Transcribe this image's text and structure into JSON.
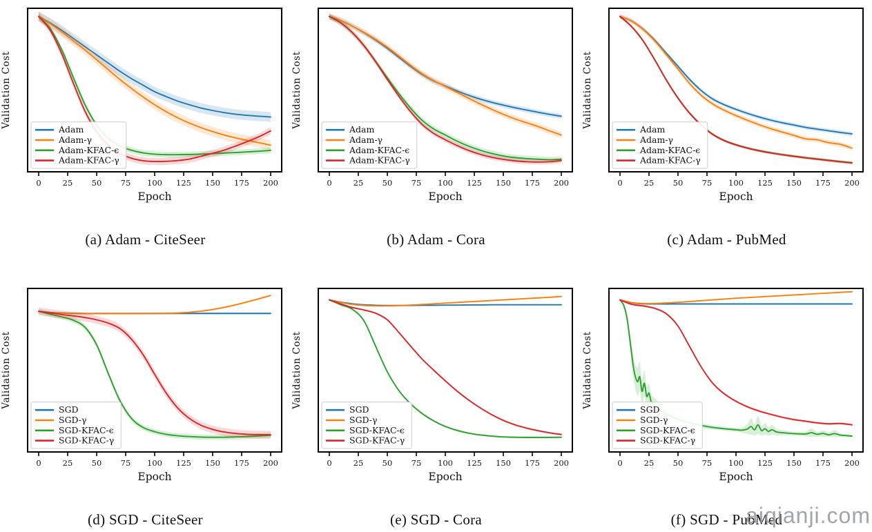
{
  "figure": {
    "background": "#ffffff",
    "watermark": "aiqianji.com"
  },
  "chart_data": [
    {
      "id": "a",
      "type": "line",
      "caption": "(a) Adam - CiteSeer",
      "xlabel": "Epoch",
      "ylabel": "Validation Cost",
      "xlim": [
        0,
        200
      ],
      "ylim": [
        0,
        1
      ],
      "xticks": [
        0,
        25,
        50,
        75,
        100,
        125,
        150,
        175,
        200
      ],
      "yticks": [],
      "grid": false,
      "legend_position": "lower left",
      "x": [
        0,
        10,
        20,
        30,
        40,
        50,
        60,
        70,
        80,
        90,
        100,
        110,
        120,
        130,
        140,
        150,
        160,
        170,
        180,
        190,
        200
      ],
      "series": [
        {
          "name": "Adam",
          "color": "#1f77b4",
          "band": 0.03,
          "values": [
            0.95,
            0.91,
            0.865,
            0.815,
            0.765,
            0.715,
            0.665,
            0.615,
            0.57,
            0.53,
            0.49,
            0.46,
            0.432,
            0.41,
            0.39,
            0.375,
            0.362,
            0.352,
            0.345,
            0.34,
            0.335
          ]
        },
        {
          "name": "Adam-γ",
          "color": "#ff7f0e",
          "band": 0.03,
          "values": [
            0.95,
            0.905,
            0.855,
            0.8,
            0.745,
            0.685,
            0.625,
            0.565,
            0.51,
            0.458,
            0.41,
            0.368,
            0.33,
            0.298,
            0.27,
            0.246,
            0.225,
            0.207,
            0.192,
            0.178,
            0.163
          ]
        },
        {
          "name": "Adam-KFAC-ϵ",
          "color": "#2ca02c",
          "band": 0.018,
          "values": [
            0.95,
            0.875,
            0.745,
            0.575,
            0.41,
            0.285,
            0.205,
            0.158,
            0.132,
            0.116,
            0.108,
            0.105,
            0.105,
            0.106,
            0.108,
            0.111,
            0.115,
            0.118,
            0.122,
            0.126,
            0.131
          ]
        },
        {
          "name": "Adam-KFAC-γ",
          "color": "#d62728",
          "band": 0.022,
          "values": [
            0.95,
            0.865,
            0.72,
            0.54,
            0.37,
            0.245,
            0.163,
            0.112,
            0.083,
            0.068,
            0.063,
            0.064,
            0.069,
            0.078,
            0.095,
            0.113,
            0.133,
            0.158,
            0.185,
            0.215,
            0.25
          ]
        }
      ]
    },
    {
      "id": "b",
      "type": "line",
      "caption": "(b) Adam - Cora",
      "xlabel": "Epoch",
      "ylabel": "Validation Cost",
      "xlim": [
        0,
        200
      ],
      "ylim": [
        0,
        1
      ],
      "xticks": [
        0,
        25,
        50,
        75,
        100,
        125,
        150,
        175,
        200
      ],
      "yticks": [],
      "grid": false,
      "legend_position": "lower left",
      "x": [
        0,
        10,
        20,
        30,
        40,
        50,
        60,
        70,
        80,
        90,
        100,
        110,
        120,
        130,
        140,
        150,
        160,
        170,
        180,
        190,
        200
      ],
      "series": [
        {
          "name": "Adam",
          "color": "#1f77b4",
          "band": 0.015,
          "values": [
            0.95,
            0.925,
            0.89,
            0.85,
            0.805,
            0.755,
            0.7,
            0.645,
            0.595,
            0.555,
            0.525,
            0.495,
            0.468,
            0.445,
            0.425,
            0.408,
            0.392,
            0.378,
            0.364,
            0.351,
            0.34
          ]
        },
        {
          "name": "Adam-γ",
          "color": "#ff7f0e",
          "band": 0.02,
          "values": [
            0.95,
            0.925,
            0.89,
            0.852,
            0.81,
            0.762,
            0.708,
            0.652,
            0.6,
            0.558,
            0.522,
            0.486,
            0.45,
            0.415,
            0.382,
            0.352,
            0.324,
            0.3,
            0.277,
            0.25,
            0.225
          ]
        },
        {
          "name": "Adam-KFAC-ϵ",
          "color": "#2ca02c",
          "band": 0.018,
          "values": [
            0.95,
            0.91,
            0.85,
            0.77,
            0.675,
            0.575,
            0.478,
            0.39,
            0.315,
            0.262,
            0.225,
            0.188,
            0.157,
            0.132,
            0.112,
            0.097,
            0.087,
            0.081,
            0.077,
            0.074,
            0.077
          ]
        },
        {
          "name": "Adam-KFAC-γ",
          "color": "#d62728",
          "band": 0.015,
          "values": [
            0.95,
            0.91,
            0.85,
            0.77,
            0.672,
            0.565,
            0.462,
            0.368,
            0.29,
            0.235,
            0.196,
            0.161,
            0.131,
            0.107,
            0.089,
            0.076,
            0.067,
            0.062,
            0.06,
            0.062,
            0.069
          ]
        }
      ]
    },
    {
      "id": "c",
      "type": "line",
      "caption": "(c) Adam - PubMed",
      "xlabel": "Epoch",
      "ylabel": "Validation Cost",
      "xlim": [
        0,
        200
      ],
      "ylim": [
        0,
        1
      ],
      "xticks": [
        0,
        25,
        50,
        75,
        100,
        125,
        150,
        175,
        200
      ],
      "yticks": [],
      "grid": false,
      "legend_position": "lower left",
      "x": [
        0,
        10,
        20,
        30,
        40,
        50,
        60,
        70,
        80,
        90,
        100,
        110,
        120,
        130,
        140,
        150,
        160,
        170,
        180,
        190,
        200
      ],
      "series": [
        {
          "name": "Adam",
          "color": "#1f77b4",
          "band": 0.012,
          "values": [
            0.95,
            0.922,
            0.872,
            0.805,
            0.725,
            0.645,
            0.565,
            0.497,
            0.445,
            0.41,
            0.382,
            0.357,
            0.335,
            0.316,
            0.3,
            0.286,
            0.272,
            0.261,
            0.251,
            0.241,
            0.232
          ]
        },
        {
          "name": "Adam-γ",
          "color": "#ff7f0e",
          "band": 0.015,
          "values": [
            0.95,
            0.922,
            0.87,
            0.8,
            0.715,
            0.628,
            0.54,
            0.468,
            0.415,
            0.376,
            0.344,
            0.315,
            0.288,
            0.264,
            0.243,
            0.223,
            0.202,
            0.196,
            0.178,
            0.168,
            0.145
          ]
        },
        {
          "name": "Adam-KFAC-ϵ",
          "color": "#2ca02c",
          "band": 0.008,
          "values": [
            0.95,
            0.888,
            0.8,
            0.685,
            0.562,
            0.452,
            0.36,
            0.287,
            0.23,
            0.192,
            0.166,
            0.146,
            0.13,
            0.117,
            0.106,
            0.096,
            0.087,
            0.079,
            0.071,
            0.063,
            0.056
          ]
        },
        {
          "name": "Adam-KFAC-γ",
          "color": "#d62728",
          "band": 0.008,
          "values": [
            0.95,
            0.888,
            0.8,
            0.684,
            0.56,
            0.45,
            0.358,
            0.285,
            0.228,
            0.19,
            0.164,
            0.144,
            0.128,
            0.115,
            0.104,
            0.094,
            0.085,
            0.077,
            0.069,
            0.061,
            0.054
          ]
        }
      ]
    },
    {
      "id": "d",
      "type": "line",
      "caption": "(d) SGD - CiteSeer",
      "xlabel": "Epoch",
      "ylabel": "Validation Cost",
      "xlim": [
        0,
        200
      ],
      "ylim": [
        0,
        1
      ],
      "xticks": [
        0,
        25,
        50,
        75,
        100,
        125,
        150,
        175,
        200
      ],
      "yticks": [],
      "grid": false,
      "legend_position": "lower left",
      "x": [
        0,
        10,
        20,
        30,
        40,
        50,
        60,
        70,
        80,
        90,
        100,
        110,
        120,
        130,
        140,
        150,
        160,
        170,
        180,
        190,
        200
      ],
      "series": [
        {
          "name": "SGD",
          "color": "#1f77b4",
          "band": 0.005,
          "values": [
            0.86,
            0.853,
            0.85,
            0.848,
            0.847,
            0.847,
            0.847,
            0.847,
            0.847,
            0.847,
            0.847,
            0.847,
            0.847,
            0.847,
            0.847,
            0.847,
            0.847,
            0.847,
            0.847,
            0.847,
            0.847
          ]
        },
        {
          "name": "SGD-γ",
          "color": "#ff7f0e",
          "band": 0.005,
          "values": [
            0.86,
            0.852,
            0.849,
            0.847,
            0.846,
            0.846,
            0.846,
            0.846,
            0.846,
            0.846,
            0.847,
            0.848,
            0.85,
            0.854,
            0.861,
            0.871,
            0.884,
            0.9,
            0.918,
            0.937,
            0.957
          ]
        },
        {
          "name": "SGD-KFAC-ϵ",
          "color": "#2ca02c",
          "band": 0.016,
          "values": [
            0.86,
            0.842,
            0.826,
            0.805,
            0.762,
            0.655,
            0.48,
            0.315,
            0.205,
            0.15,
            0.124,
            0.108,
            0.099,
            0.094,
            0.091,
            0.09,
            0.09,
            0.092,
            0.095,
            0.098,
            0.102
          ]
        },
        {
          "name": "SGD-KFAC-γ",
          "color": "#d62728",
          "band": 0.024,
          "values": [
            0.86,
            0.85,
            0.84,
            0.832,
            0.822,
            0.808,
            0.788,
            0.755,
            0.69,
            0.595,
            0.475,
            0.36,
            0.268,
            0.205,
            0.163,
            0.138,
            0.122,
            0.113,
            0.108,
            0.106,
            0.105
          ]
        }
      ]
    },
    {
      "id": "e",
      "type": "line",
      "caption": "(e) SGD - Cora",
      "xlabel": "Epoch",
      "ylabel": "Validation Cost",
      "xlim": [
        0,
        200
      ],
      "ylim": [
        0,
        1
      ],
      "xticks": [
        0,
        25,
        50,
        75,
        100,
        125,
        150,
        175,
        200
      ],
      "yticks": [],
      "grid": false,
      "legend_position": "lower left",
      "x": [
        0,
        10,
        20,
        30,
        40,
        50,
        60,
        70,
        80,
        90,
        100,
        110,
        120,
        130,
        140,
        150,
        160,
        170,
        180,
        190,
        200
      ],
      "series": [
        {
          "name": "SGD",
          "color": "#1f77b4",
          "band": 0.004,
          "values": [
            0.93,
            0.916,
            0.906,
            0.9,
            0.897,
            0.896,
            0.896,
            0.896,
            0.897,
            0.897,
            0.898,
            0.898,
            0.899,
            0.899,
            0.9,
            0.9,
            0.9,
            0.9,
            0.9,
            0.9,
            0.9
          ]
        },
        {
          "name": "SGD-γ",
          "color": "#ff7f0e",
          "band": 0.004,
          "values": [
            0.93,
            0.914,
            0.902,
            0.896,
            0.893,
            0.893,
            0.895,
            0.898,
            0.902,
            0.906,
            0.91,
            0.914,
            0.918,
            0.922,
            0.926,
            0.93,
            0.934,
            0.938,
            0.942,
            0.946,
            0.951
          ]
        },
        {
          "name": "SGD-KFAC-ϵ",
          "color": "#2ca02c",
          "band": 0.006,
          "values": [
            0.93,
            0.9,
            0.872,
            0.8,
            0.645,
            0.49,
            0.375,
            0.295,
            0.235,
            0.19,
            0.156,
            0.132,
            0.115,
            0.104,
            0.097,
            0.092,
            0.09,
            0.089,
            0.089,
            0.089,
            0.09
          ]
        },
        {
          "name": "SGD-KFAC-γ",
          "color": "#d62728",
          "band": 0.006,
          "values": [
            0.93,
            0.905,
            0.883,
            0.868,
            0.848,
            0.808,
            0.73,
            0.648,
            0.568,
            0.5,
            0.435,
            0.373,
            0.318,
            0.27,
            0.228,
            0.193,
            0.166,
            0.146,
            0.13,
            0.117,
            0.107
          ]
        }
      ]
    },
    {
      "id": "f",
      "type": "line",
      "caption": "(f) SGD - PubMed",
      "xlabel": "Epoch",
      "ylabel": "Validation Cost",
      "xlim": [
        0,
        200
      ],
      "ylim": [
        0,
        1
      ],
      "xticks": [
        0,
        25,
        50,
        75,
        100,
        125,
        150,
        175,
        200
      ],
      "yticks": [],
      "grid": false,
      "legend_position": "lower left",
      "x": [
        0,
        10,
        20,
        30,
        40,
        50,
        60,
        70,
        80,
        90,
        100,
        110,
        120,
        130,
        140,
        150,
        160,
        170,
        180,
        190,
        200
      ],
      "series": [
        {
          "name": "SGD",
          "color": "#1f77b4",
          "band": 0.004,
          "values": [
            0.93,
            0.912,
            0.906,
            0.905,
            0.905,
            0.905,
            0.905,
            0.905,
            0.905,
            0.905,
            0.905,
            0.905,
            0.905,
            0.905,
            0.905,
            0.905,
            0.905,
            0.905,
            0.905,
            0.905,
            0.905
          ]
        },
        {
          "name": "SGD-γ",
          "color": "#ff7f0e",
          "band": 0.004,
          "values": [
            0.93,
            0.914,
            0.908,
            0.908,
            0.911,
            0.915,
            0.92,
            0.925,
            0.93,
            0.935,
            0.94,
            0.944,
            0.948,
            0.952,
            0.956,
            0.96,
            0.964,
            0.968,
            0.972,
            0.976,
            0.98
          ]
        },
        {
          "name": "SGD-KFAC-ϵ",
          "color": "#2ca02c",
          "x": [
            0,
            3,
            6,
            9,
            12,
            15,
            17,
            19,
            21,
            23,
            25,
            27,
            30,
            35,
            40,
            45,
            50,
            60,
            70,
            80,
            90,
            100,
            105,
            110,
            113,
            116,
            119,
            122,
            125,
            128,
            131,
            135,
            140,
            150,
            160,
            165,
            170,
            175,
            180,
            185,
            190,
            195,
            200
          ],
          "values": [
            0.93,
            0.9,
            0.82,
            0.66,
            0.5,
            0.43,
            0.46,
            0.37,
            0.42,
            0.34,
            0.36,
            0.305,
            0.285,
            0.255,
            0.232,
            0.214,
            0.2,
            0.178,
            0.162,
            0.15,
            0.142,
            0.136,
            0.133,
            0.141,
            0.156,
            0.135,
            0.166,
            0.13,
            0.142,
            0.125,
            0.136,
            0.122,
            0.118,
            0.112,
            0.11,
            0.118,
            0.108,
            0.113,
            0.105,
            0.112,
            0.103,
            0.1,
            0.097
          ],
          "band_values": [
            0.004,
            0.01,
            0.03,
            0.05,
            0.07,
            0.085,
            0.09,
            0.075,
            0.08,
            0.065,
            0.06,
            0.05,
            0.045,
            0.035,
            0.03,
            0.026,
            0.022,
            0.018,
            0.015,
            0.013,
            0.012,
            0.012,
            0.015,
            0.032,
            0.05,
            0.035,
            0.055,
            0.03,
            0.036,
            0.026,
            0.03,
            0.02,
            0.016,
            0.012,
            0.015,
            0.026,
            0.015,
            0.02,
            0.014,
            0.022,
            0.012,
            0.01,
            0.01
          ]
        },
        {
          "name": "SGD-KFAC-γ",
          "color": "#d62728",
          "band": 0.007,
          "values": [
            0.93,
            0.903,
            0.893,
            0.878,
            0.845,
            0.77,
            0.645,
            0.52,
            0.42,
            0.355,
            0.31,
            0.276,
            0.25,
            0.23,
            0.212,
            0.198,
            0.188,
            0.178,
            0.172,
            0.174,
            0.166
          ]
        }
      ]
    }
  ]
}
